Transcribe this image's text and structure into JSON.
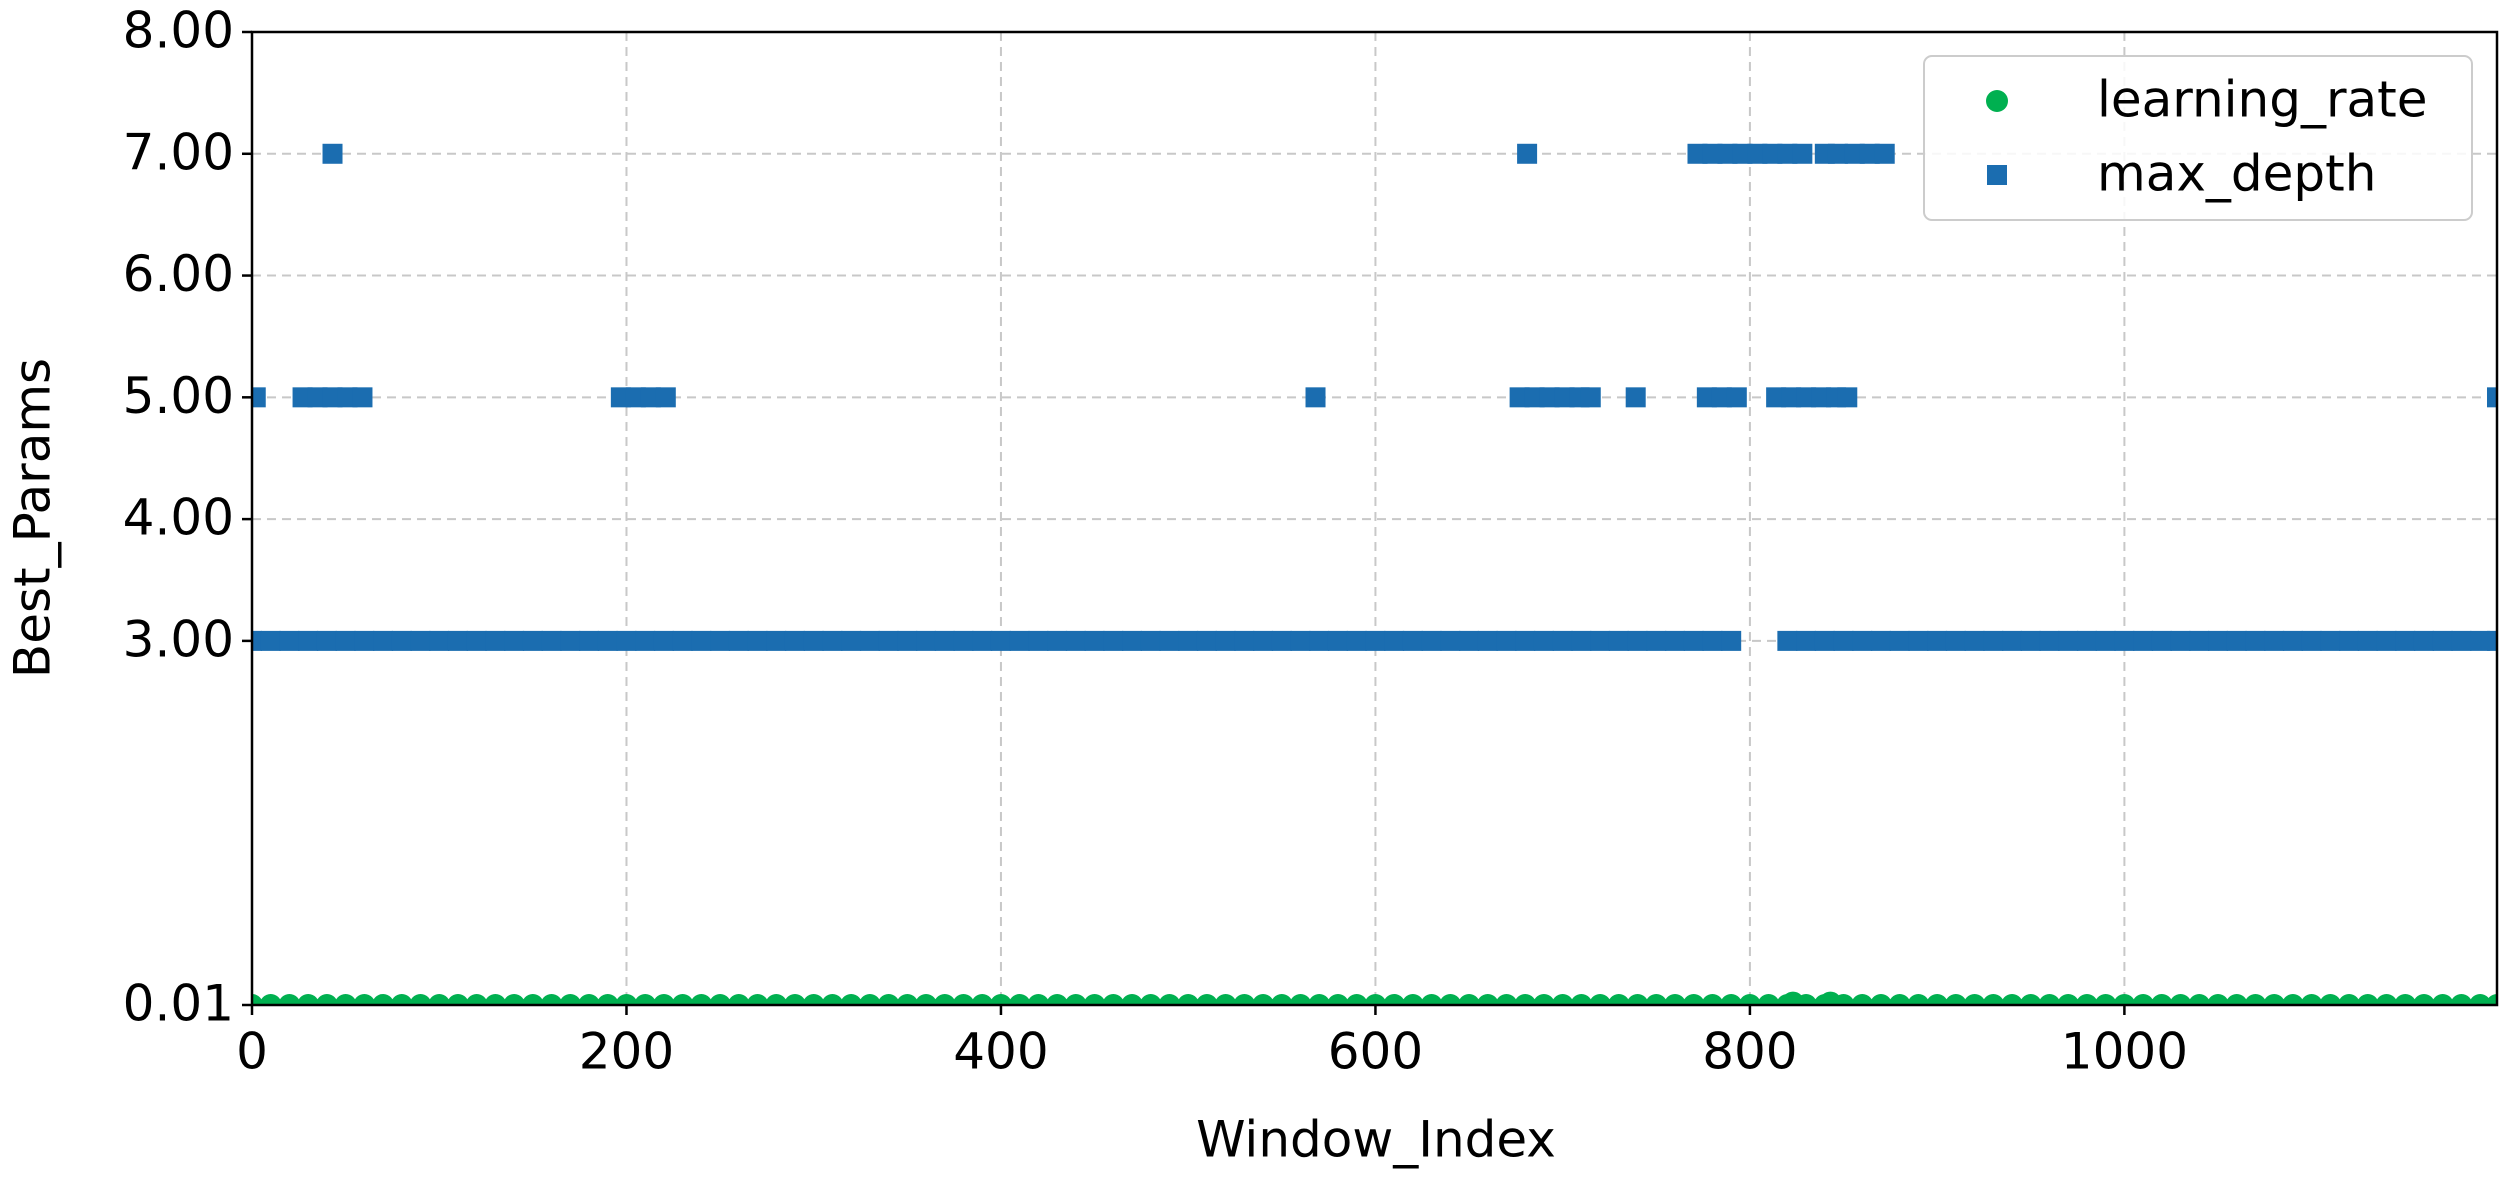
{
  "chart_data": {
    "type": "scatter",
    "xlabel": "Window_Index",
    "ylabel": "Best_Params",
    "xlim": [
      0,
      1199
    ],
    "ylim": [
      0.01,
      8
    ],
    "xticks": [
      0,
      200,
      400,
      600,
      800,
      1000
    ],
    "yticks": [
      0.01,
      {
        "value": 3,
        "label": "3.00"
      },
      {
        "value": 4,
        "label": "4.00"
      },
      {
        "value": 5,
        "label": "5.00"
      },
      {
        "value": 6,
        "label": "6.00"
      },
      {
        "value": 7,
        "label": "7.00"
      },
      {
        "value": 8,
        "label": "8.00"
      }
    ],
    "grid": true,
    "legend": "upper right",
    "series": [
      {
        "name": "learning_rate",
        "color": "#00b050",
        "marker": "circle",
        "x": [
          0,
          10,
          20,
          30,
          40,
          50,
          60,
          70,
          80,
          90,
          100,
          110,
          120,
          130,
          140,
          150,
          160,
          170,
          180,
          190,
          200,
          210,
          220,
          230,
          240,
          250,
          260,
          270,
          280,
          290,
          300,
          310,
          320,
          330,
          340,
          350,
          360,
          370,
          380,
          390,
          400,
          410,
          420,
          430,
          440,
          450,
          460,
          470,
          480,
          490,
          500,
          510,
          520,
          530,
          540,
          550,
          560,
          570,
          580,
          590,
          600,
          610,
          620,
          630,
          640,
          650,
          660,
          670,
          680,
          690,
          700,
          710,
          720,
          730,
          740,
          750,
          760,
          770,
          780,
          790,
          800,
          810,
          820,
          830,
          840,
          850,
          860,
          870,
          880,
          890,
          900,
          910,
          920,
          930,
          940,
          950,
          960,
          970,
          980,
          990,
          1000,
          1010,
          1020,
          1030,
          1040,
          1050,
          1060,
          1070,
          1080,
          1090,
          1100,
          1110,
          1120,
          1130,
          1140,
          1150,
          1160,
          1170,
          1180,
          1190,
          1199,
          823,
          843
        ],
        "values": [
          0.01,
          0.01,
          0.01,
          0.01,
          0.01,
          0.01,
          0.01,
          0.01,
          0.01,
          0.01,
          0.01,
          0.01,
          0.01,
          0.01,
          0.01,
          0.01,
          0.01,
          0.01,
          0.01,
          0.01,
          0.01,
          0.01,
          0.01,
          0.01,
          0.01,
          0.01,
          0.01,
          0.01,
          0.01,
          0.01,
          0.01,
          0.01,
          0.01,
          0.01,
          0.01,
          0.01,
          0.01,
          0.01,
          0.01,
          0.01,
          0.01,
          0.01,
          0.01,
          0.01,
          0.01,
          0.01,
          0.01,
          0.01,
          0.01,
          0.01,
          0.01,
          0.01,
          0.01,
          0.01,
          0.01,
          0.01,
          0.01,
          0.01,
          0.01,
          0.01,
          0.01,
          0.01,
          0.01,
          0.01,
          0.01,
          0.01,
          0.01,
          0.01,
          0.01,
          0.01,
          0.01,
          0.01,
          0.01,
          0.01,
          0.01,
          0.01,
          0.01,
          0.01,
          0.01,
          0.01,
          0.01,
          0.01,
          0.01,
          0.01,
          0.01,
          0.01,
          0.01,
          0.01,
          0.01,
          0.01,
          0.01,
          0.01,
          0.01,
          0.01,
          0.01,
          0.01,
          0.01,
          0.01,
          0.01,
          0.01,
          0.01,
          0.01,
          0.01,
          0.01,
          0.01,
          0.01,
          0.01,
          0.01,
          0.01,
          0.01,
          0.01,
          0.01,
          0.01,
          0.01,
          0.01,
          0.01,
          0.01,
          0.01,
          0.01,
          0.01,
          0.01,
          0.03,
          0.03
        ]
      },
      {
        "name": "max_depth",
        "color": "#1b6db0",
        "marker": "square",
        "x": [
          0,
          10,
          20,
          30,
          40,
          50,
          60,
          70,
          80,
          90,
          100,
          110,
          120,
          130,
          140,
          150,
          160,
          170,
          180,
          190,
          200,
          210,
          220,
          230,
          240,
          250,
          260,
          270,
          280,
          290,
          300,
          310,
          320,
          330,
          340,
          350,
          360,
          370,
          380,
          390,
          400,
          410,
          420,
          430,
          440,
          450,
          460,
          470,
          480,
          490,
          500,
          510,
          520,
          530,
          540,
          550,
          560,
          570,
          580,
          590,
          600,
          610,
          620,
          630,
          640,
          650,
          660,
          670,
          680,
          690,
          700,
          710,
          720,
          730,
          740,
          750,
          760,
          770,
          780,
          790,
          820,
          830,
          840,
          850,
          860,
          870,
          880,
          890,
          900,
          910,
          920,
          930,
          940,
          950,
          960,
          970,
          980,
          990,
          1000,
          1010,
          1020,
          1030,
          1040,
          1050,
          1060,
          1070,
          1080,
          1090,
          1100,
          1110,
          1120,
          1130,
          1140,
          1150,
          1160,
          1170,
          1180,
          1190,
          1199,
          2,
          27,
          35,
          43,
          51,
          59,
          197,
          205,
          213,
          221,
          568,
          677,
          685,
          693,
          701,
          709,
          715,
          739,
          777,
          785,
          793,
          814,
          822,
          830,
          838,
          846,
          852,
          1199,
          43,
          681,
          772,
          780,
          788,
          796,
          804,
          812,
          820,
          828,
          840,
          847,
          856,
          864,
          872
        ],
        "values": [
          3,
          3,
          3,
          3,
          3,
          3,
          3,
          3,
          3,
          3,
          3,
          3,
          3,
          3,
          3,
          3,
          3,
          3,
          3,
          3,
          3,
          3,
          3,
          3,
          3,
          3,
          3,
          3,
          3,
          3,
          3,
          3,
          3,
          3,
          3,
          3,
          3,
          3,
          3,
          3,
          3,
          3,
          3,
          3,
          3,
          3,
          3,
          3,
          3,
          3,
          3,
          3,
          3,
          3,
          3,
          3,
          3,
          3,
          3,
          3,
          3,
          3,
          3,
          3,
          3,
          3,
          3,
          3,
          3,
          3,
          3,
          3,
          3,
          3,
          3,
          3,
          3,
          3,
          3,
          3,
          3,
          3,
          3,
          3,
          3,
          3,
          3,
          3,
          3,
          3,
          3,
          3,
          3,
          3,
          3,
          3,
          3,
          3,
          3,
          3,
          3,
          3,
          3,
          3,
          3,
          3,
          3,
          3,
          3,
          3,
          3,
          3,
          3,
          3,
          3,
          3,
          3,
          3,
          3,
          5,
          5,
          5,
          5,
          5,
          5,
          5,
          5,
          5,
          5,
          5,
          5,
          5,
          5,
          5,
          5,
          5,
          5,
          5,
          5,
          5,
          5,
          5,
          5,
          5,
          5,
          5,
          5,
          7,
          7,
          7,
          7,
          7,
          7,
          7,
          7,
          7,
          7,
          7,
          7,
          7,
          7,
          7
        ]
      }
    ]
  }
}
